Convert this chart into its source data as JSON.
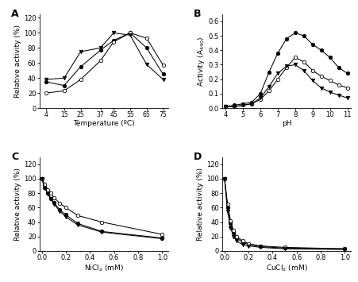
{
  "panel_A": {
    "label": "A",
    "temperatures": [
      4,
      15,
      25,
      37,
      45,
      55,
      65,
      75
    ],
    "vep45": [
      35,
      30,
      55,
      77,
      90,
      100,
      80,
      45
    ],
    "vep34": [
      20,
      23,
      38,
      63,
      88,
      100,
      93,
      57
    ],
    "g202d": [
      38,
      40,
      75,
      80,
      100,
      97,
      58,
      38
    ],
    "xlabel": "Temperature (ºC)",
    "ylabel": "Relative activity (%)",
    "xticks": [
      4,
      15,
      25,
      37,
      45,
      55,
      65,
      75
    ],
    "ylim": [
      0,
      125
    ],
    "yticks": [
      0,
      20,
      40,
      60,
      80,
      100,
      120
    ]
  },
  "panel_B": {
    "label": "B",
    "pH": [
      4.0,
      4.5,
      5.0,
      5.5,
      6.0,
      6.5,
      7.0,
      7.5,
      8.0,
      8.5,
      9.0,
      9.5,
      10.0,
      10.5,
      11.0
    ],
    "vep45": [
      0.01,
      0.02,
      0.03,
      0.04,
      0.1,
      0.25,
      0.38,
      0.48,
      0.52,
      0.5,
      0.44,
      0.4,
      0.35,
      0.28,
      0.24
    ],
    "vep34": [
      0.01,
      0.01,
      0.02,
      0.03,
      0.06,
      0.12,
      0.2,
      0.28,
      0.35,
      0.32,
      0.26,
      0.22,
      0.19,
      0.16,
      0.14
    ],
    "g202d": [
      0.01,
      0.01,
      0.02,
      0.03,
      0.07,
      0.15,
      0.24,
      0.29,
      0.3,
      0.26,
      0.19,
      0.14,
      0.11,
      0.09,
      0.07
    ],
    "xlabel": "pH",
    "ylabel": "Activity (A$_{440}$)",
    "xticks": [
      4,
      5,
      6,
      7,
      8,
      9,
      10,
      11
    ],
    "ylim": [
      0,
      0.65
    ],
    "yticks": [
      0.0,
      0.1,
      0.2,
      0.3,
      0.4,
      0.5,
      0.6
    ]
  },
  "panel_C": {
    "label": "C",
    "conc": [
      0.0,
      0.025,
      0.05,
      0.075,
      0.1,
      0.15,
      0.2,
      0.3,
      0.5,
      1.0
    ],
    "vep45": [
      100,
      88,
      80,
      73,
      67,
      57,
      50,
      38,
      27,
      18
    ],
    "vep34": [
      100,
      92,
      85,
      80,
      74,
      66,
      60,
      49,
      40,
      23
    ],
    "g202d": [
      100,
      87,
      79,
      72,
      65,
      55,
      47,
      36,
      26,
      17
    ],
    "xlabel": "NiCl$_2$ (mM)",
    "ylabel": "Relative activity (%)",
    "xticks": [
      0.0,
      0.2,
      0.4,
      0.6,
      0.8,
      1.0
    ],
    "xlim": [
      -0.02,
      1.05
    ],
    "ylim": [
      0,
      130
    ],
    "yticks": [
      0,
      20,
      40,
      60,
      80,
      100,
      120
    ]
  },
  "panel_D": {
    "label": "D",
    "conc": [
      0.0,
      0.025,
      0.05,
      0.075,
      0.1,
      0.15,
      0.2,
      0.3,
      0.5,
      1.0
    ],
    "vep45": [
      100,
      60,
      38,
      25,
      18,
      12,
      9,
      6,
      4,
      3
    ],
    "vep34": [
      100,
      65,
      42,
      28,
      20,
      14,
      10,
      7,
      5,
      3
    ],
    "g202d": [
      100,
      55,
      32,
      20,
      14,
      9,
      7,
      5,
      3,
      2
    ],
    "xlabel": "CuCl$_2$ (mM)",
    "ylabel": "Relative activity (%)",
    "xticks": [
      0.0,
      0.2,
      0.4,
      0.6,
      0.8,
      1.0
    ],
    "xlim": [
      -0.02,
      1.05
    ],
    "ylim": [
      0,
      130
    ],
    "yticks": [
      0,
      20,
      40,
      60,
      80,
      100,
      120
    ]
  }
}
